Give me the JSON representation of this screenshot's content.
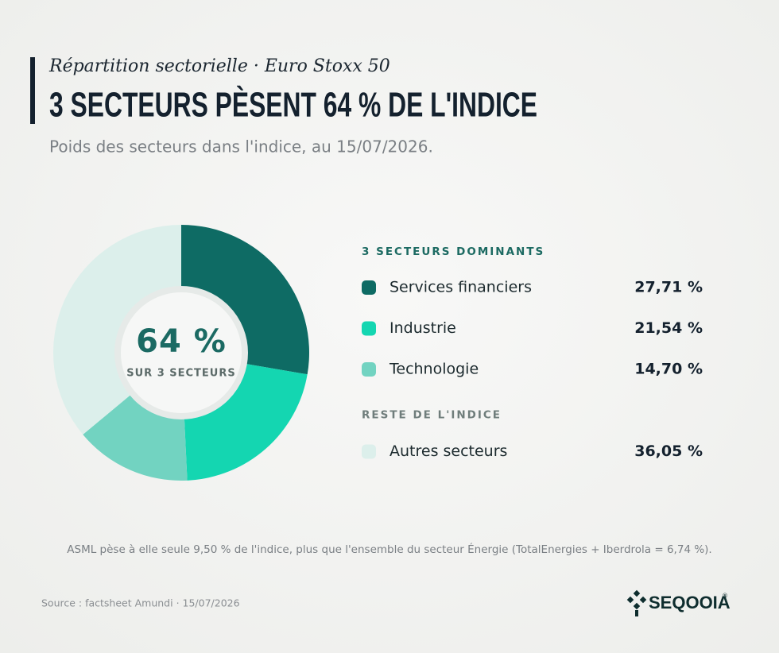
{
  "chart_data": {
    "type": "donut",
    "kicker": "Répartition sectorielle · Euro Stoxx 50",
    "title": "3 SECTEURS PÈSENT 64 % DE L'INDICE",
    "subtitle": "Poids des secteurs dans l'indice, au 15/07/2026.",
    "center_label": "64 %",
    "center_sublabel": "SUR 3 SECTEURS",
    "legend_groups": [
      "3 SECTEURS DOMINANTS",
      "RESTE DE L'INDICE"
    ],
    "categories": [
      "Services financiers",
      "Industrie",
      "Technologie",
      "Autres secteurs"
    ],
    "values": [
      27.71,
      21.54,
      14.7,
      36.05
    ],
    "value_labels": [
      "27,71 %",
      "21,54 %",
      "14,70 %",
      "36,05 %"
    ],
    "colors": [
      "#0e6b64",
      "#14d6b1",
      "#72d3c1",
      "#dcefeb"
    ],
    "note": "ASML pèse à elle seule 9,50 % de l'indice, plus que l'ensemble du secteur Énergie (TotalEnergies + Iberdrola = 6,74 %).",
    "source": "Source : factsheet Amundi · 15/07/2026",
    "brand": "SEQOOIA",
    "brand_mark": "®"
  }
}
